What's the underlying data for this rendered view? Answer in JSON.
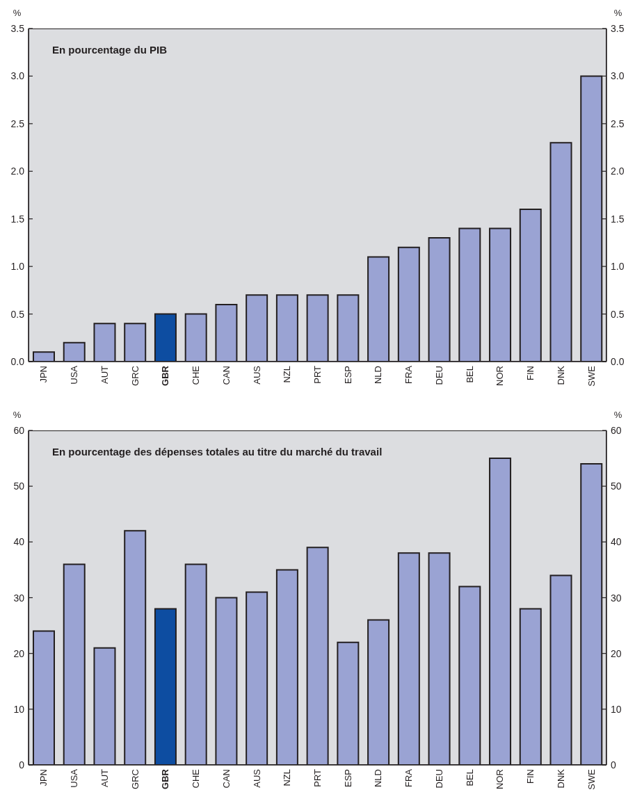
{
  "chart_data": [
    {
      "type": "bar",
      "title": "En pourcentage du PIB",
      "ylabel": "%",
      "y2label": "%",
      "categories": [
        "JPN",
        "USA",
        "AUT",
        "GRC",
        "GBR",
        "CHE",
        "CAN",
        "AUS",
        "NZL",
        "PRT",
        "ESP",
        "NLD",
        "FRA",
        "DEU",
        "BEL",
        "NOR",
        "FIN",
        "DNK",
        "SWE"
      ],
      "values": [
        0.1,
        0.2,
        0.4,
        0.4,
        0.5,
        0.5,
        0.6,
        0.7,
        0.7,
        0.7,
        0.7,
        1.1,
        1.2,
        1.3,
        1.4,
        1.4,
        1.6,
        2.3,
        3.0
      ],
      "colors": [
        "#9aa3d3",
        "#9aa3d3",
        "#9aa3d3",
        "#9aa3d3",
        "#0d4da1",
        "#9aa3d3",
        "#9aa3d3",
        "#9aa3d3",
        "#9aa3d3",
        "#9aa3d3",
        "#9aa3d3",
        "#9aa3d3",
        "#9aa3d3",
        "#9aa3d3",
        "#9aa3d3",
        "#9aa3d3",
        "#9aa3d3",
        "#9aa3d3",
        "#9aa3d3"
      ],
      "ylim": [
        0,
        3.5
      ],
      "yticks": [
        {
          "value": 0,
          "label": "0.0"
        },
        0.5,
        {
          "value": 1,
          "label": "1.0"
        },
        1.5,
        {
          "value": 2,
          "label": "2.0"
        },
        2.5,
        {
          "value": 3,
          "label": "3.0"
        },
        3.5
      ],
      "y2lim": [
        0,
        3.5
      ],
      "y2ticks": [
        {
          "value": 0,
          "label": "0.0"
        },
        0.5,
        {
          "value": 1,
          "label": "1.0"
        },
        1.5,
        {
          "value": 2,
          "label": "2.0"
        },
        2.5,
        {
          "value": 3,
          "label": "3.0"
        },
        3.5
      ]
    },
    {
      "type": "bar",
      "title": "En pourcentage des dépenses totales au titre du marché du travail",
      "ylabel": "%",
      "y2label": "%",
      "categories": [
        "JPN",
        "USA",
        "AUT",
        "GRC",
        "GBR",
        "CHE",
        "CAN",
        "AUS",
        "NZL",
        "PRT",
        "ESP",
        "NLD",
        "FRA",
        "DEU",
        "BEL",
        "NOR",
        "FIN",
        "DNK",
        "SWE"
      ],
      "values": [
        24,
        36,
        21,
        42,
        28,
        36,
        30,
        31,
        35,
        39,
        22,
        26,
        38,
        38,
        32,
        55,
        28,
        34,
        54
      ],
      "colors": [
        "#9aa3d3",
        "#9aa3d3",
        "#9aa3d3",
        "#9aa3d3",
        "#0d4da1",
        "#9aa3d3",
        "#9aa3d3",
        "#9aa3d3",
        "#9aa3d3",
        "#9aa3d3",
        "#9aa3d3",
        "#9aa3d3",
        "#9aa3d3",
        "#9aa3d3",
        "#9aa3d3",
        "#9aa3d3",
        "#9aa3d3",
        "#9aa3d3",
        "#9aa3d3"
      ],
      "ylim": [
        0,
        60
      ],
      "yticks": [
        0,
        10,
        20,
        30,
        40,
        50,
        60
      ],
      "y2lim": [
        0,
        60
      ],
      "y2ticks": [
        0,
        10,
        20,
        30,
        40,
        50,
        60
      ]
    }
  ]
}
